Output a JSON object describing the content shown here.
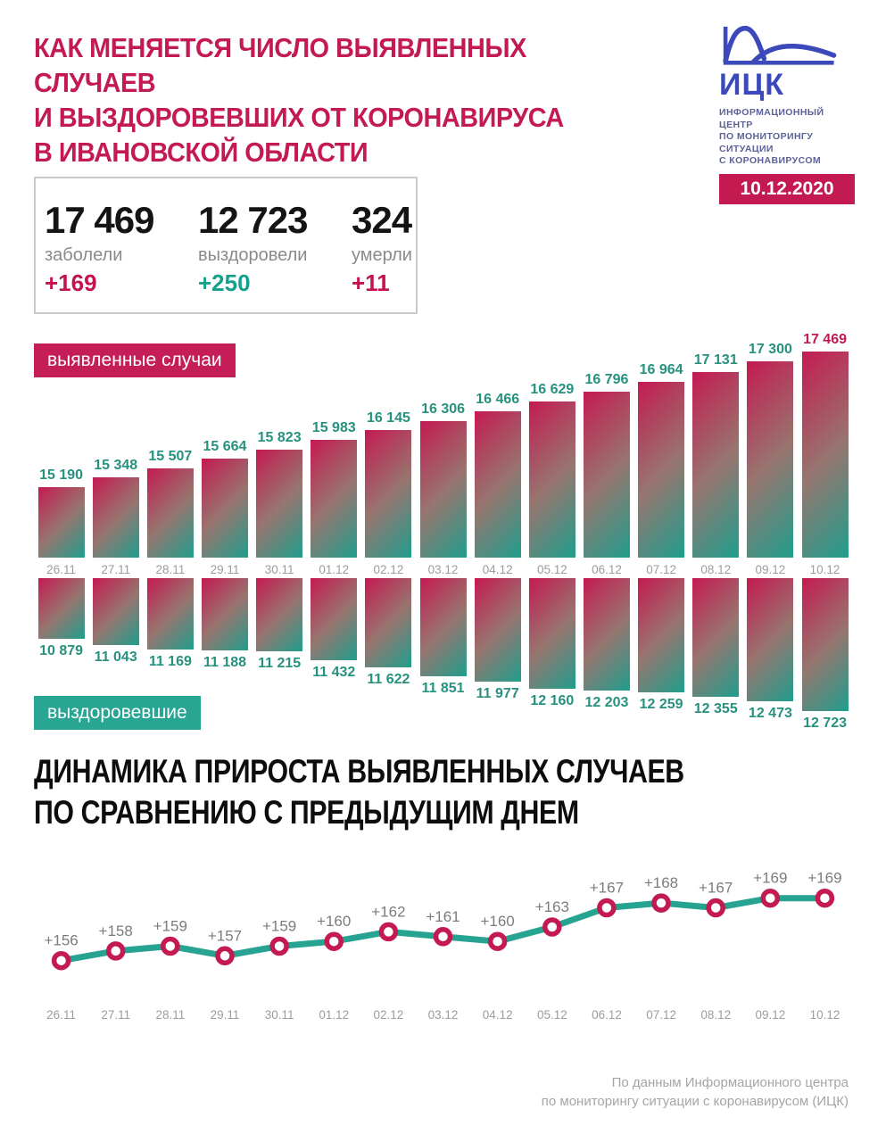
{
  "header": {
    "title_lines": [
      "КАК МЕНЯЕТСЯ ЧИСЛО ВЫЯВЛЕННЫХ СЛУЧАЕВ",
      "И ВЫЗДОРОВЕВШИХ ОТ КОРОНАВИРУСА",
      "В ИВАНОВСКОЙ ОБЛАСТИ"
    ],
    "logo": {
      "abbr": "ИЦК",
      "subtitle_lines": [
        "ИНФОРМАЦИОННЫЙ ЦЕНТР",
        "ПО МОНИТОРИНГУ СИТУАЦИИ",
        "С КОРОНАВИРУСОМ"
      ],
      "date": "10.12.2020"
    }
  },
  "stats": {
    "items": [
      {
        "value": "17 469",
        "label": "заболели",
        "delta": "+169",
        "delta_color": "#c4134f"
      },
      {
        "value": "12 723",
        "label": "выздоровели",
        "delta": "+250",
        "delta_color": "#13a08c"
      },
      {
        "value": "324",
        "label": "умерли",
        "delta": "+11",
        "delta_color": "#c4134f"
      }
    ]
  },
  "colors": {
    "crimson": "#c21a51",
    "teal": "#27a392",
    "bar_label_teal": "#27917f",
    "logo_blue": "#3b49bb",
    "logo_subtitle": "#5c6298",
    "date_gray": "#9c9c9c",
    "line_label_gray": "#7c7c7c",
    "bar_gradient": [
      "#c51a52",
      "#97756f",
      "#1f9e8d"
    ]
  },
  "chart_data": [
    {
      "type": "bar",
      "name": "cases",
      "badge": "выявленные случаи",
      "categories": [
        "26.11",
        "27.11",
        "28.11",
        "29.11",
        "30.11",
        "01.12",
        "02.12",
        "03.12",
        "04.12",
        "05.12",
        "06.12",
        "07.12",
        "08.12",
        "09.12",
        "10.12"
      ],
      "values": [
        15190,
        15348,
        15507,
        15664,
        15823,
        15983,
        16145,
        16306,
        16466,
        16629,
        16796,
        16964,
        17131,
        17300,
        17469
      ],
      "labels": [
        "15 190",
        "15 348",
        "15 507",
        "15 664",
        "15 823",
        "15 983",
        "16 145",
        "16 306",
        "16 466",
        "16 629",
        "16 796",
        "16 964",
        "17 131",
        "17 300",
        "17 469"
      ],
      "highlight_last": true,
      "ylim": [
        14000,
        17500
      ],
      "grid": false,
      "legend": "none"
    },
    {
      "type": "bar",
      "name": "recovered",
      "badge": "выздоровевшие",
      "orientation": "hanging",
      "categories": [
        "26.11",
        "27.11",
        "28.11",
        "29.11",
        "30.11",
        "01.12",
        "02.12",
        "03.12",
        "04.12",
        "05.12",
        "06.12",
        "07.12",
        "08.12",
        "09.12",
        "10.12"
      ],
      "values": [
        10879,
        11043,
        11169,
        11188,
        11215,
        11432,
        11622,
        11851,
        11977,
        12160,
        12203,
        12259,
        12355,
        12473,
        12723
      ],
      "labels": [
        "10 879",
        "11 043",
        "11 169",
        "11 188",
        "11 215",
        "11 432",
        "11 622",
        "11 851",
        "11 977",
        "12 160",
        "12 203",
        "12 259",
        "12 355",
        "12 473",
        "12 723"
      ],
      "highlight_last": false,
      "ylim": [
        9350,
        12750
      ],
      "grid": false,
      "legend": "none"
    },
    {
      "type": "line",
      "name": "daily-increase",
      "title_lines": [
        "ДИНАМИКА ПРИРОСТА ВЫЯВЛЕННЫХ СЛУЧАЕВ",
        "ПО СРАВНЕНИЮ С ПРЕДЫДУЩИМ ДНЕМ"
      ],
      "categories": [
        "26.11",
        "27.11",
        "28.11",
        "29.11",
        "30.11",
        "01.12",
        "02.12",
        "03.12",
        "04.12",
        "05.12",
        "06.12",
        "07.12",
        "08.12",
        "09.12",
        "10.12"
      ],
      "values": [
        156,
        158,
        159,
        157,
        159,
        160,
        162,
        161,
        160,
        163,
        167,
        168,
        167,
        169,
        169
      ],
      "labels": [
        "+156",
        "+158",
        "+159",
        "+157",
        "+159",
        "+160",
        "+162",
        "+161",
        "+160",
        "+163",
        "+167",
        "+168",
        "+167",
        "+169",
        "+169"
      ],
      "ylim": [
        150,
        175
      ],
      "grid": false,
      "legend": "none"
    }
  ],
  "footer": {
    "lines": [
      "По данным Информационного центра",
      "по мониторингу ситуации с коронавирусом (ИЦК)"
    ]
  }
}
